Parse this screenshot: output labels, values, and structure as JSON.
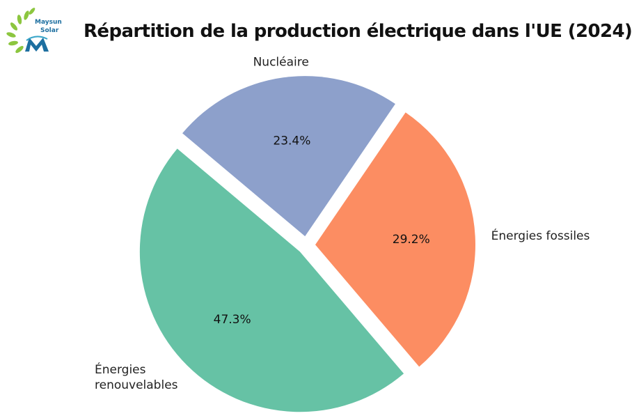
{
  "header": {
    "title": "Répartition de la production électrique dans l'UE (2024)",
    "logo_text": [
      "Maysun",
      "Solar"
    ]
  },
  "colors": {
    "renewables": "#66c2a5",
    "fossil": "#fc8d62",
    "nuclear": "#8da0cb",
    "logo_green": "#8cc63f",
    "logo_blue": "#1d6fa0"
  },
  "chart_data": {
    "type": "pie",
    "title": "Répartition de la production électrique dans l'UE (2024)",
    "categories": [
      "Énergies renouvelables",
      "Énergies fossiles",
      "Nucléaire"
    ],
    "values": [
      47.3,
      29.2,
      23.4
    ],
    "value_labels": [
      "47.3%",
      "29.2%",
      "23.4%"
    ],
    "exploded": true,
    "start_angle": 140,
    "direction": "counterclockwise"
  }
}
